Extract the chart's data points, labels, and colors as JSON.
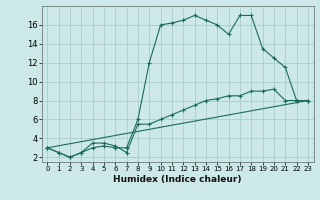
{
  "title": "",
  "xlabel": "Humidex (Indice chaleur)",
  "ylabel": "",
  "background_color": "#cce8e8",
  "grid_color": "#aacccc",
  "line_color": "#1a6b5a",
  "xlim": [
    -0.5,
    23.5
  ],
  "ylim": [
    1.5,
    18.0
  ],
  "xticks": [
    0,
    1,
    2,
    3,
    4,
    5,
    6,
    7,
    8,
    9,
    10,
    11,
    12,
    13,
    14,
    15,
    16,
    17,
    18,
    19,
    20,
    21,
    22,
    23
  ],
  "yticks": [
    2,
    4,
    6,
    8,
    10,
    12,
    14,
    16
  ],
  "line1_x": [
    0,
    1,
    2,
    3,
    4,
    5,
    6,
    7,
    8,
    9,
    10,
    11,
    12,
    13,
    14,
    15,
    16,
    17,
    18,
    19,
    20,
    21,
    22,
    23
  ],
  "line1_y": [
    3.0,
    2.5,
    2.0,
    2.5,
    3.0,
    3.2,
    3.0,
    3.0,
    6.0,
    12.0,
    16.0,
    16.2,
    16.5,
    17.0,
    16.5,
    16.0,
    15.0,
    17.0,
    17.0,
    13.5,
    12.5,
    11.5,
    8.0,
    8.0
  ],
  "line2_x": [
    0,
    1,
    2,
    3,
    4,
    5,
    6,
    7,
    8,
    9,
    10,
    11,
    12,
    13,
    14,
    15,
    16,
    17,
    18,
    19,
    20,
    21,
    22,
    23
  ],
  "line2_y": [
    3.0,
    2.5,
    2.0,
    2.5,
    3.5,
    3.5,
    3.2,
    2.5,
    5.5,
    5.5,
    6.0,
    6.5,
    7.0,
    7.5,
    8.0,
    8.2,
    8.5,
    8.5,
    9.0,
    9.0,
    9.2,
    8.0,
    8.0,
    8.0
  ],
  "line3_x": [
    0,
    23
  ],
  "line3_y": [
    3.0,
    8.0
  ],
  "xlabel_fontsize": 6.5,
  "tick_fontsize_x": 5.0,
  "tick_fontsize_y": 6.0
}
